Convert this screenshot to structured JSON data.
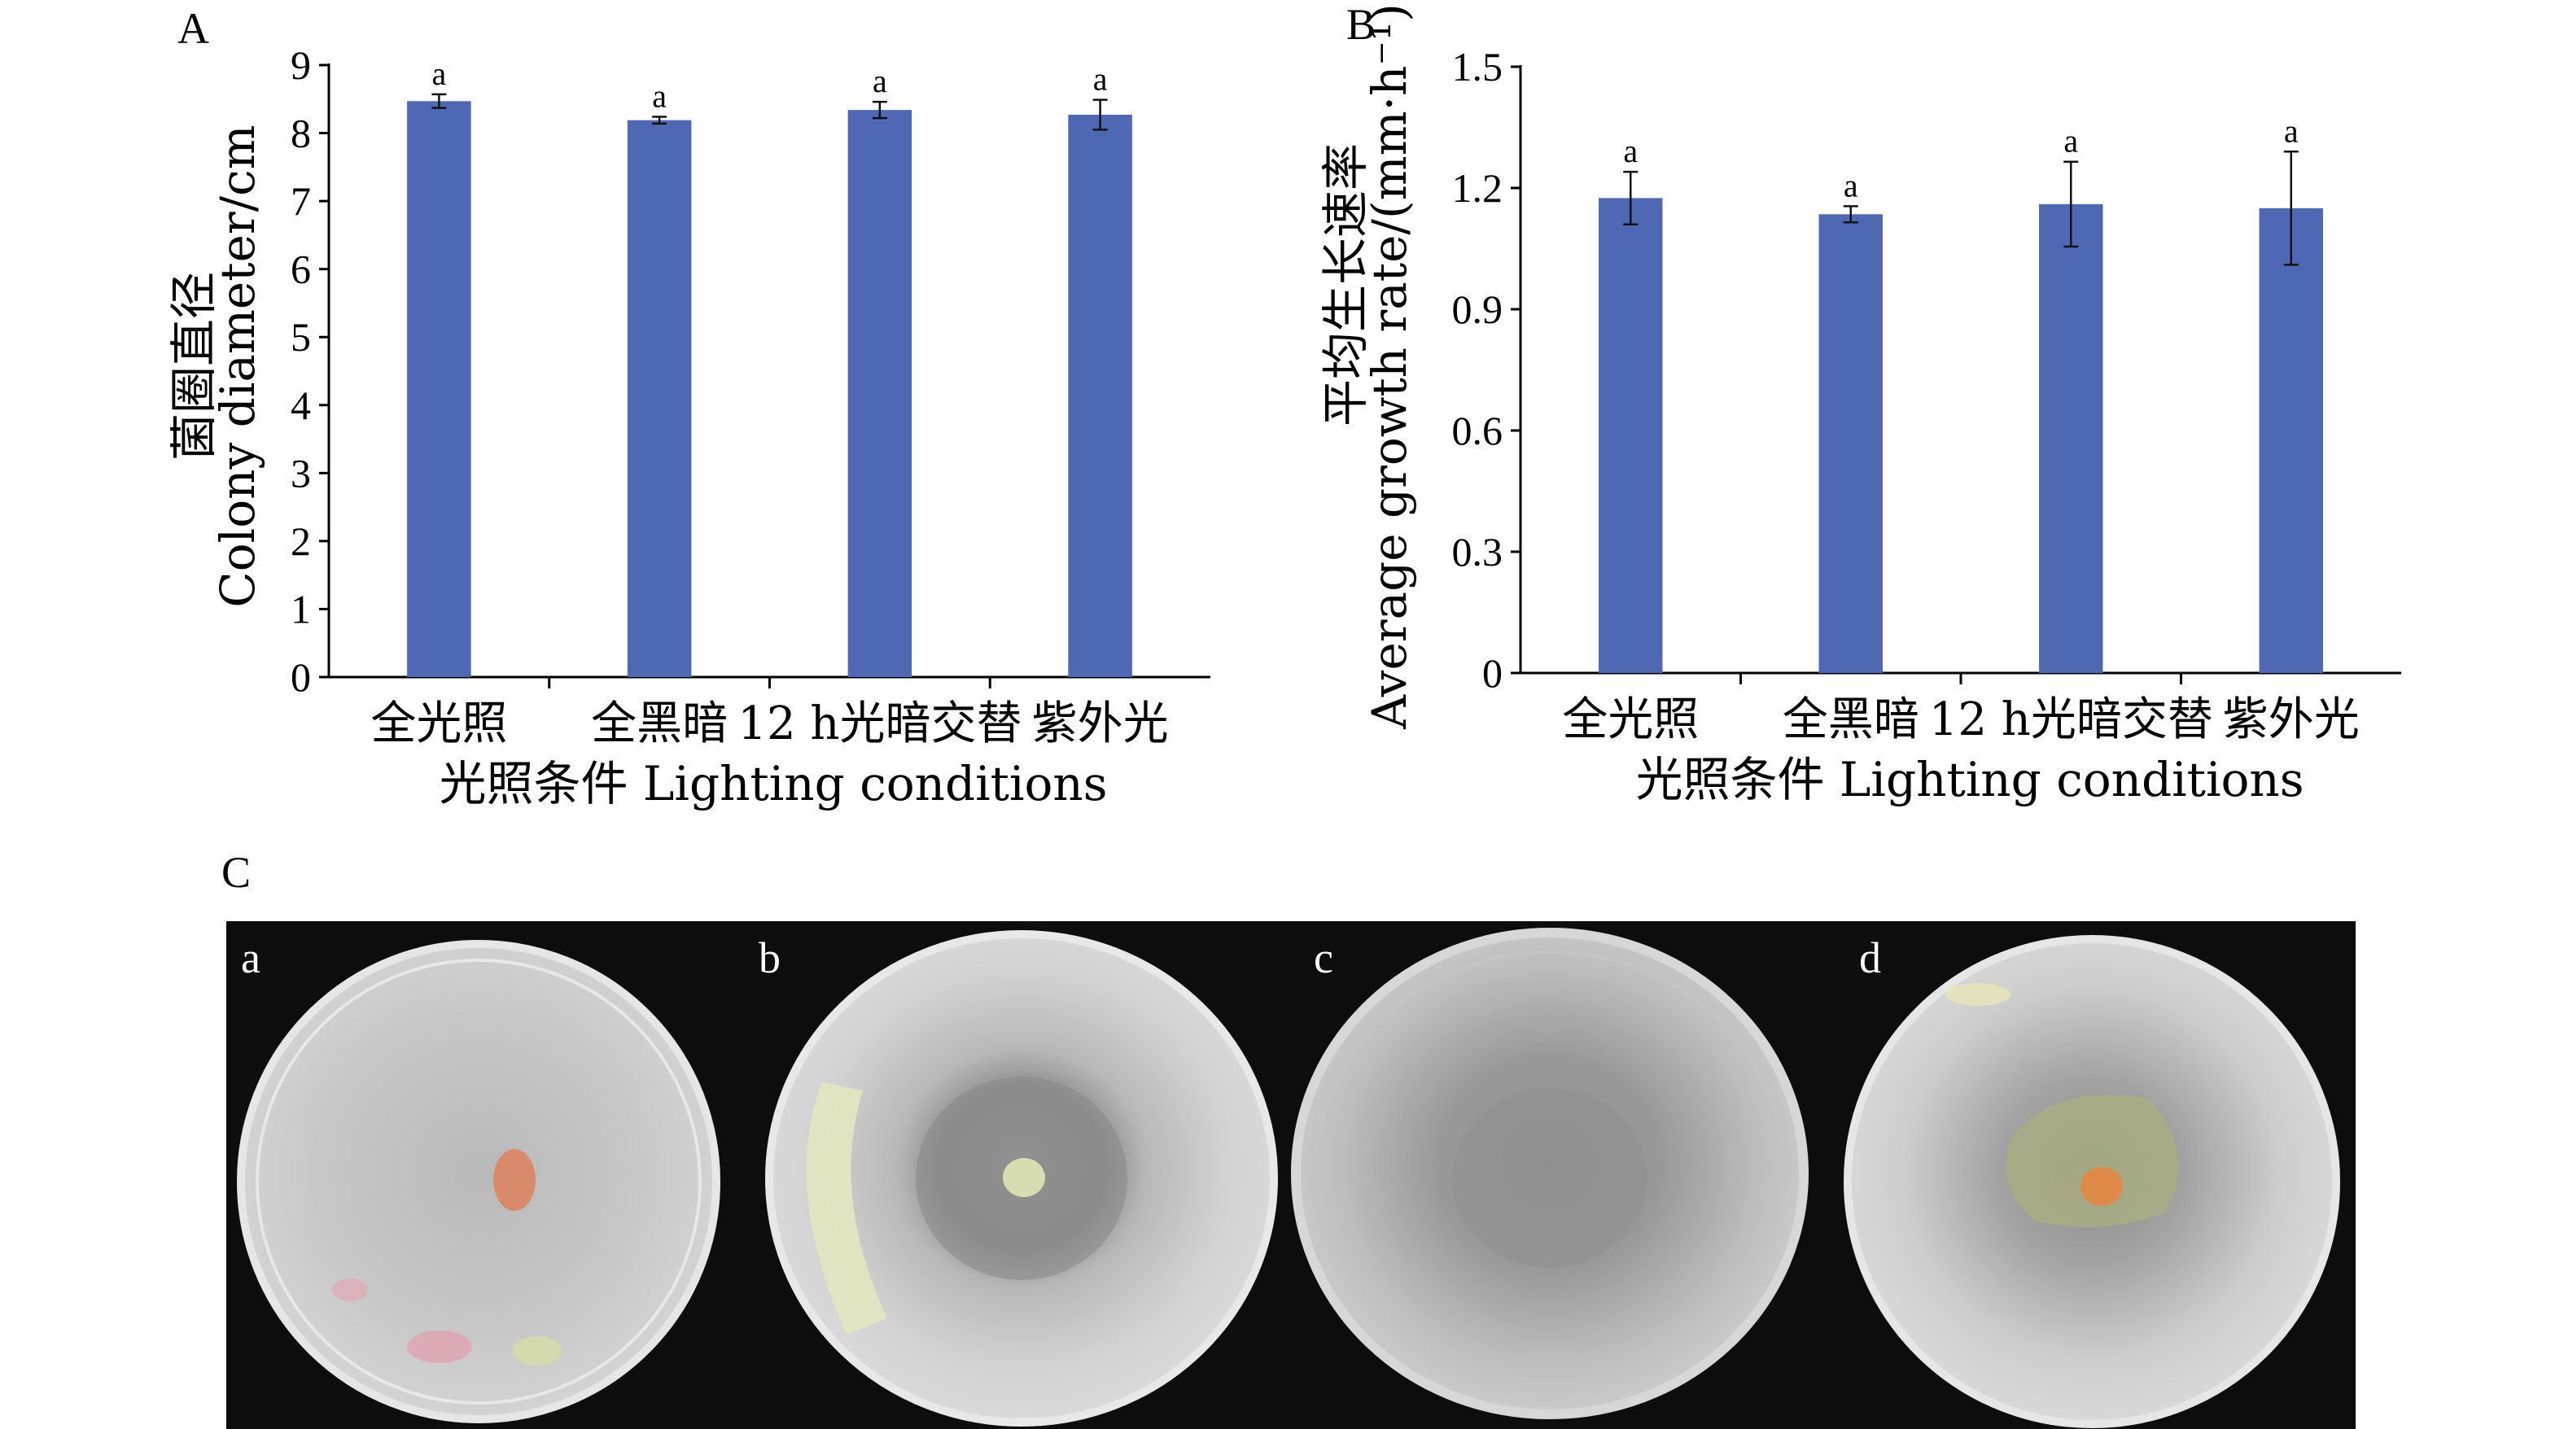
{
  "figure": {
    "panel_labels": [
      "A",
      "B",
      "C"
    ],
    "plate_labels": [
      "a",
      "b",
      "c",
      "d"
    ]
  },
  "colors": {
    "bar": "#4e68b4",
    "axis": "#000000",
    "photo_background": "#0d0d0d"
  },
  "chart_data": [
    {
      "type": "bar",
      "panel": "A",
      "categories": [
        "全光照",
        "全黑暗",
        "12 h光暗交替",
        "紫外光"
      ],
      "values": [
        8.47,
        8.19,
        8.34,
        8.27
      ],
      "errors": [
        0.1,
        0.05,
        0.12,
        0.22
      ],
      "significance": [
        "a",
        "a",
        "a",
        "a"
      ],
      "xlabel": "光照条件 Lighting conditions",
      "ylabel_cn": "菌圈直径",
      "ylabel_en": "Colony diameter/cm",
      "ylim": [
        0,
        9
      ],
      "yticks": [
        "0",
        "1",
        "2",
        "3",
        "4",
        "5",
        "6",
        "7",
        "8",
        "9"
      ],
      "grid": false,
      "legend": "none"
    },
    {
      "type": "bar",
      "panel": "B",
      "categories": [
        "全光照",
        "全黑暗",
        "12 h光暗交替",
        "紫外光"
      ],
      "values": [
        1.175,
        1.135,
        1.16,
        1.15
      ],
      "errors": [
        0.065,
        0.02,
        0.105,
        0.14
      ],
      "significance": [
        "a",
        "a",
        "a",
        "a"
      ],
      "xlabel": "光照条件 Lighting conditions",
      "ylabel_cn": "平均生长速率",
      "ylabel_en": "Average growth rate/(mm·h⁻¹)",
      "ylim": [
        0,
        1.5
      ],
      "yticks": [
        "0",
        "0.3",
        "0.6",
        "0.9",
        "1.2",
        "1.5"
      ],
      "grid": false,
      "legend": "none"
    }
  ]
}
